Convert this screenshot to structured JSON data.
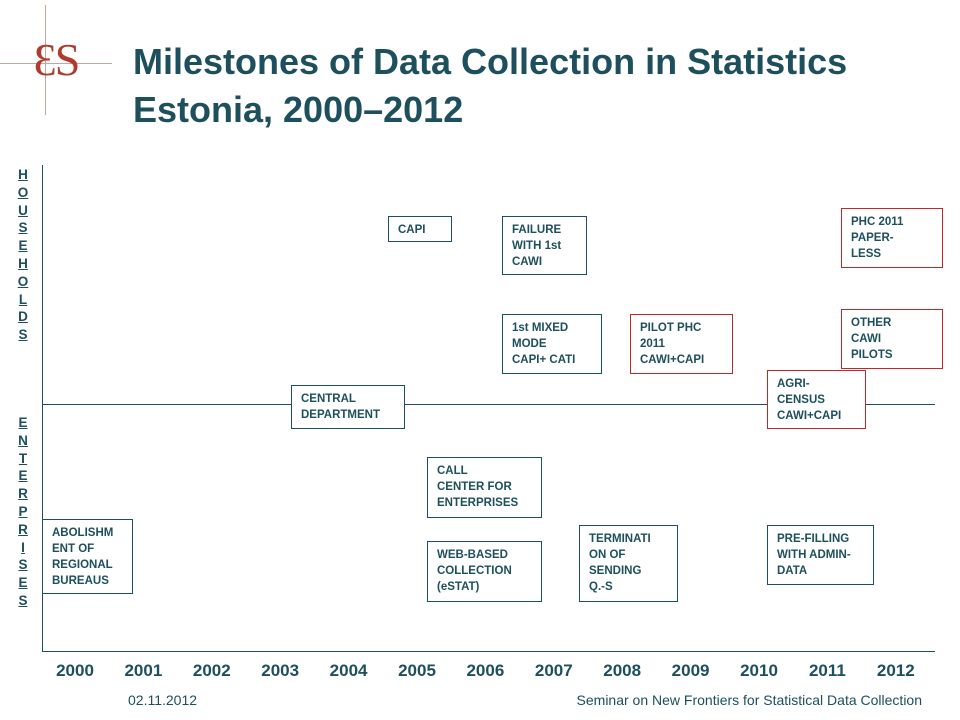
{
  "logo": {
    "text": "ƐS",
    "color": "#b13a2e"
  },
  "title": "Milestones of Data Collection in Statistics Estonia, 2000–2012",
  "sections": {
    "top": "HOUSEHOLDS",
    "bottom": "ENTERPRISES"
  },
  "years": [
    "2000",
    "2001",
    "2002",
    "2003",
    "2004",
    "2005",
    "2006",
    "2007",
    "2008",
    "2009",
    "2010",
    "2011",
    "2012"
  ],
  "milestones": [
    {
      "id": "capi",
      "text": "CAPI",
      "highlight": false
    },
    {
      "id": "failure-cawi",
      "text": "FAILURE\nWITH 1st\nCAWI",
      "highlight": false
    },
    {
      "id": "phc-paperless",
      "text": "PHC 2011\nPAPER-\nLESS",
      "highlight": true
    },
    {
      "id": "mixed-mode",
      "text": "1st MIXED\nMODE\nCAPI+ CATI",
      "highlight": false
    },
    {
      "id": "pilot-phc",
      "text": "PILOT PHC\n2011\nCAWI+CAPI",
      "highlight": true
    },
    {
      "id": "other-cawi",
      "text": "OTHER\nCAWI\nPILOTS",
      "highlight": true
    },
    {
      "id": "agri-census",
      "text": "AGRI-\nCENSUS\nCAWI+CAPI",
      "highlight": true
    },
    {
      "id": "central-department",
      "text": "CENTRAL\nDEPARTMENT",
      "highlight": false
    },
    {
      "id": "call-center",
      "text": "CALL\nCENTER FOR\nENTERPRISES",
      "highlight": false
    },
    {
      "id": "abolishment",
      "text": "ABOLISHM\nENT OF\nREGIONAL\nBUREAUS",
      "highlight": false
    },
    {
      "id": "web-based",
      "text": "WEB-BASED\nCOLLECTION\n(eSTAT)",
      "highlight": false
    },
    {
      "id": "termination",
      "text": "TERMINATI\nON OF\nSENDING\nQ.-S",
      "highlight": false
    },
    {
      "id": "pre-filling",
      "text": "PRE-FILLING\nWITH ADMIN-\nDATA",
      "highlight": false
    }
  ],
  "footer": {
    "date": "02.11.2012",
    "seminar": "Seminar on New Frontiers for Statistical Data Collection"
  },
  "colors": {
    "text": "#1d4f5c",
    "highlight_border": "#c0262a"
  }
}
